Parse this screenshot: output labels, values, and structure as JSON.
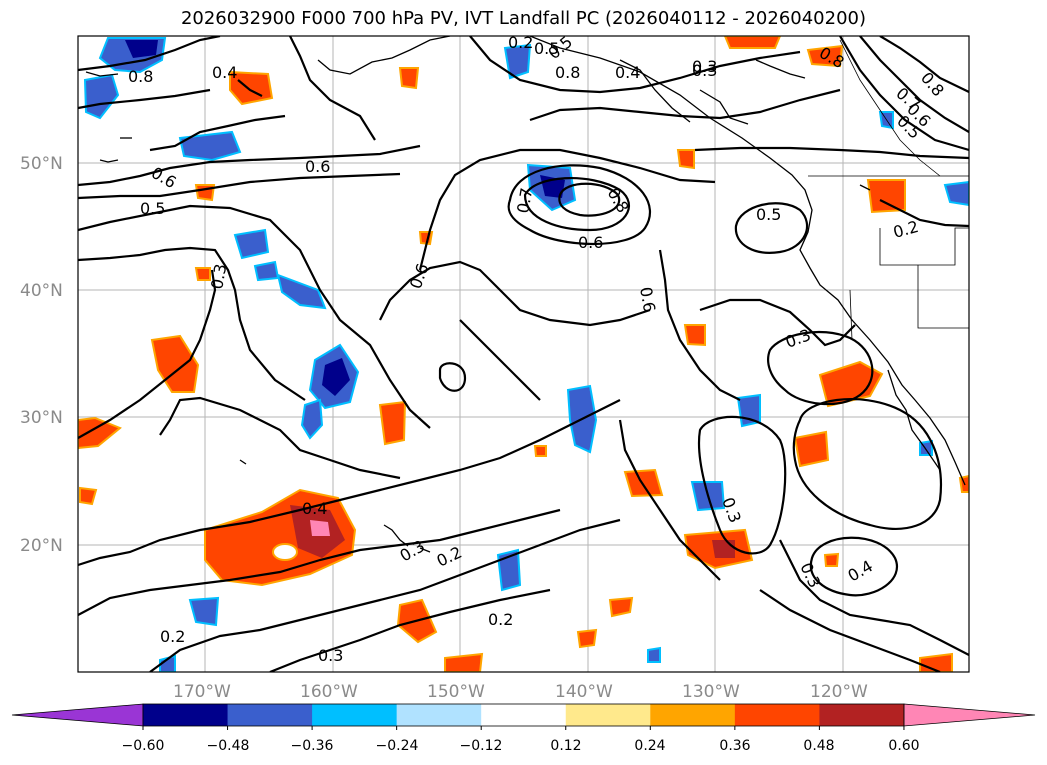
{
  "title": "2026032900 F000 700 hPa PV, IVT Landfall PC (2026040112 - 2026040200)",
  "latitude_labels": [
    "50°N",
    "40°N",
    "30°N",
    "20°N"
  ],
  "longitude_labels": [
    "170°W",
    "160°W",
    "150°W",
    "140°W",
    "130°W",
    "120°W"
  ],
  "contour_labels": [
    "0.8",
    "0.6",
    "0.5",
    "0.4",
    "0.3",
    "0.2",
    "0.7",
    "0.6",
    "0.5",
    "0.8",
    "0.3",
    "0.6",
    "0.6",
    "0.5",
    "0.2",
    "0.3",
    "0.3",
    "0.2",
    "0.4",
    "0.3",
    "0.3",
    "0.4",
    "0.2",
    "0.2",
    "0.3",
    "0.7",
    "0.6",
    "0.5",
    "0.8",
    "0.4",
    "0.6",
    "0.8",
    "0.5",
    "0.8",
    "0.3"
  ],
  "colorbar": {
    "ticks": [
      "−0.60",
      "−0.48",
      "−0.36",
      "−0.24",
      "−0.12",
      "0.12",
      "0.24",
      "0.36",
      "0.48",
      "0.60"
    ],
    "colors": [
      "#9a35d5",
      "#00008b",
      "#3a5fcd",
      "#00bfff",
      "#b0e2ff",
      "#ffffff",
      "#ffe98c",
      "#ffa500",
      "#ff4500",
      "#b22222",
      "#ff86b5"
    ]
  }
}
